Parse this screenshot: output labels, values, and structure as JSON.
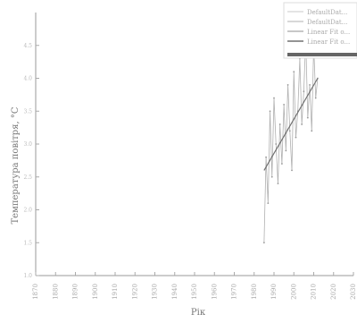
{
  "chart_data": {
    "type": "line",
    "xlabel": "Рік",
    "ylabel": "Температура повітря, °C",
    "xlim": [
      1870,
      2030
    ],
    "ylim": [
      1.0,
      5.0
    ],
    "x_ticks": [
      1870,
      1880,
      1890,
      1900,
      1910,
      1920,
      1930,
      1940,
      1950,
      1960,
      1970,
      1980,
      1990,
      2000,
      2010,
      2020,
      2030
    ],
    "y_ticks": [
      1.0,
      1.5,
      2.0,
      2.5,
      3.0,
      3.5,
      4.0,
      4.5
    ],
    "grid": false,
    "legend_position": "top-right",
    "legend": [
      "DefaultDat...",
      "DefaultDat...",
      "Linear Fit o...",
      "Linear Fit o..."
    ],
    "series": [
      {
        "name": "DefaultDat...",
        "color": "#b0b0b0",
        "x": [
          1985,
          1986,
          1987,
          1988,
          1989,
          1990,
          1991,
          1992,
          1993,
          1994,
          1995,
          1996,
          1997,
          1998,
          1999,
          2000,
          2001,
          2002,
          2003,
          2004,
          2005,
          2006,
          2007,
          2008,
          2009,
          2010,
          2011,
          2012
        ],
        "y": [
          1.5,
          2.8,
          2.1,
          3.5,
          2.5,
          3.7,
          3.0,
          2.4,
          3.3,
          2.7,
          3.6,
          2.9,
          3.9,
          3.2,
          2.6,
          4.1,
          3.1,
          3.5,
          4.3,
          3.3,
          3.8,
          4.6,
          3.4,
          3.9,
          3.2,
          4.5,
          3.7,
          4.0
        ]
      },
      {
        "name": "Linear Fit o...",
        "color": "#707070",
        "x": [
          1985,
          2012
        ],
        "y": [
          2.6,
          4.0
        ]
      }
    ]
  }
}
